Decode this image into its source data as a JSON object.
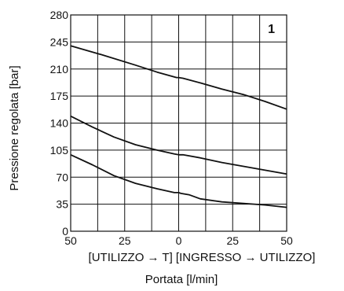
{
  "chart_data": {
    "type": "line",
    "badge": "1",
    "xlabel": "Portata  [l/min]",
    "xsublabel": "[UTILIZZO → T]  [INGRESSO → UTILIZZO]",
    "ylabel": "Pressione regolata [bar]",
    "xlim": [
      -50,
      50
    ],
    "ylim": [
      0,
      280
    ],
    "xticks": [
      -50,
      -25,
      0,
      25,
      50
    ],
    "xtick_labels": [
      "50",
      "25",
      "0",
      "25",
      "50"
    ],
    "yticks": [
      0,
      35,
      70,
      105,
      140,
      175,
      210,
      245,
      280
    ],
    "ytick_labels": [
      "0",
      "35",
      "70",
      "105",
      "140",
      "175",
      "210",
      "245",
      "280"
    ],
    "grid": true,
    "series": [
      {
        "x": [
          -50,
          -35,
          -20,
          -10,
          -1,
          0,
          2,
          10,
          20,
          30,
          40,
          50
        ],
        "y": [
          240,
          228,
          215,
          206,
          199,
          199,
          198,
          192,
          184,
          177,
          168,
          158
        ]
      },
      {
        "x": [
          -50,
          -40,
          -30,
          -20,
          -10,
          -2,
          0,
          2,
          10,
          20,
          30,
          40,
          50
        ],
        "y": [
          149,
          135,
          122,
          112,
          105,
          100,
          99,
          99,
          95,
          89,
          84,
          79,
          74
        ]
      },
      {
        "x": [
          -50,
          -40,
          -30,
          -20,
          -10,
          -2,
          0,
          1,
          5,
          10,
          20,
          30,
          40,
          50
        ],
        "y": [
          99,
          86,
          72,
          62,
          55,
          50,
          50,
          49,
          47,
          42,
          38,
          36,
          34,
          31
        ]
      }
    ],
    "line_color": "#111111",
    "grid_color": "#111111"
  }
}
